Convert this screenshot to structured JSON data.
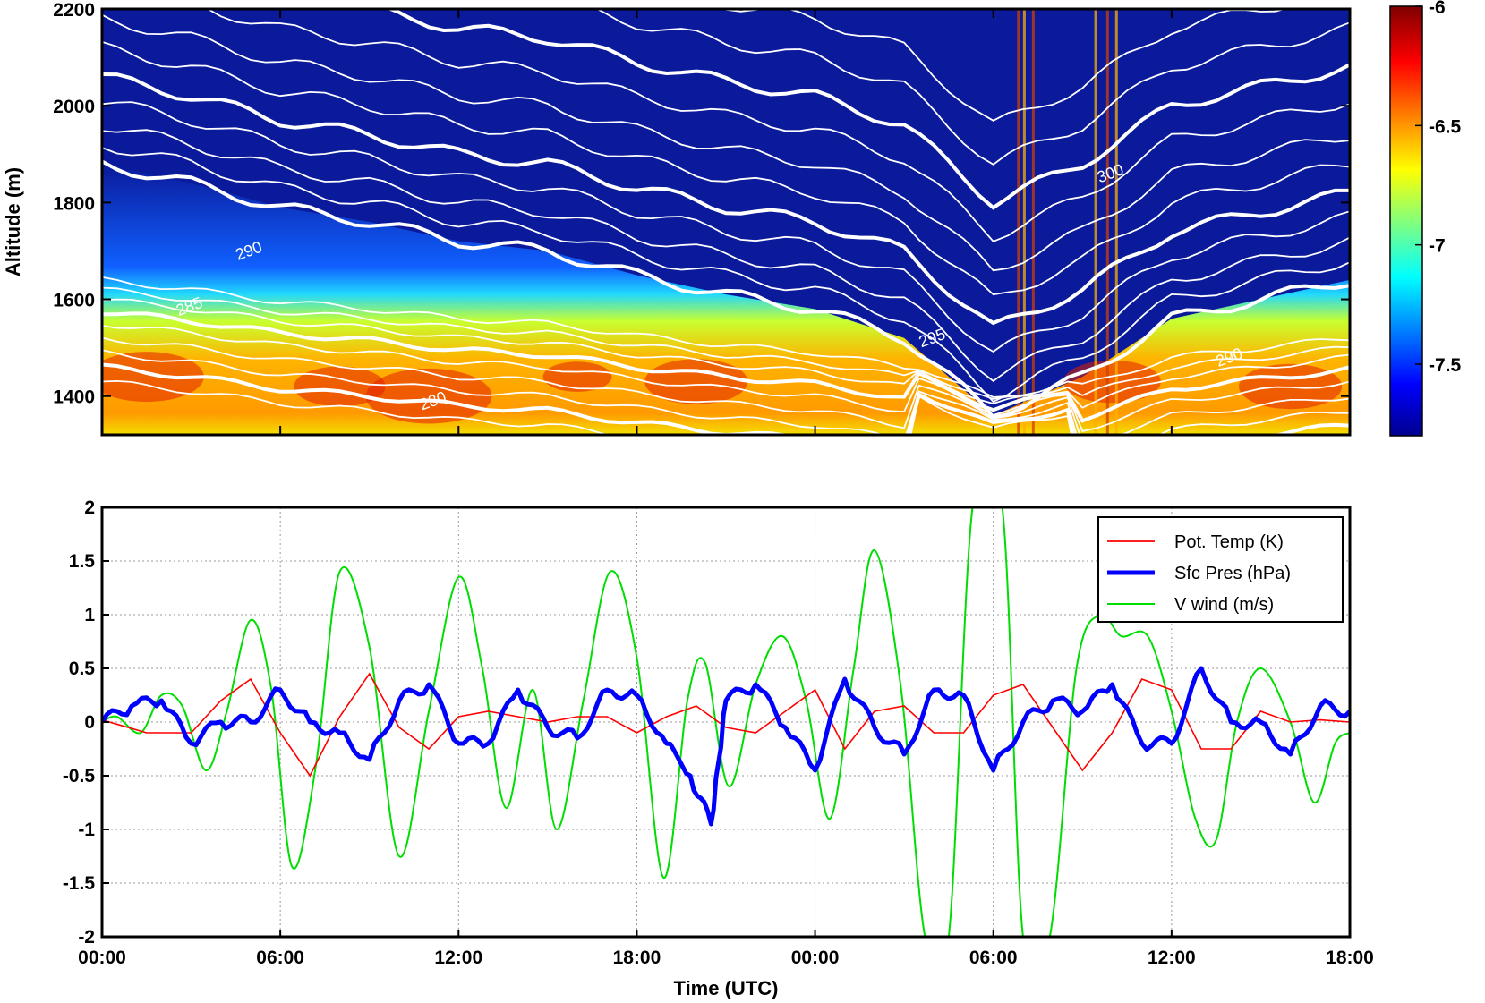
{
  "chart_data": [
    {
      "type": "heatmap",
      "ylabel": "Altitude (m)",
      "xlim_hours": [
        0,
        42
      ],
      "ylim": [
        1320,
        2200
      ],
      "yticks": [
        "1400",
        "1600",
        "1800",
        "2000",
        "2200"
      ],
      "ytick_values": [
        1400,
        1600,
        1800,
        2000,
        2200
      ],
      "colorbar": {
        "range": [
          -7.8,
          -6.0
        ],
        "ticks": [
          "-6",
          "-6.5",
          "-7",
          "-7.5"
        ],
        "tick_values": [
          -6.0,
          -6.5,
          -7.0,
          -7.5
        ],
        "colormap": "jet"
      },
      "contour_labels": [
        "300",
        "290",
        "285",
        "280",
        "295",
        "290"
      ],
      "boundary_layer_top_m": [
        [
          0,
          1880
        ],
        [
          3,
          1840
        ],
        [
          6,
          1790
        ],
        [
          9,
          1760
        ],
        [
          12,
          1720
        ],
        [
          15,
          1700
        ],
        [
          18,
          1650
        ],
        [
          21,
          1610
        ],
        [
          24,
          1580
        ],
        [
          27,
          1520
        ],
        [
          30,
          1360
        ],
        [
          33,
          1440
        ],
        [
          36,
          1560
        ],
        [
          39,
          1600
        ],
        [
          42,
          1640
        ]
      ]
    },
    {
      "type": "line",
      "xlabel": "Time (UTC)",
      "x_ticks": [
        "00:00",
        "06:00",
        "12:00",
        "18:00",
        "00:00",
        "06:00",
        "12:00",
        "18:00"
      ],
      "x_tick_hours": [
        0,
        6,
        12,
        18,
        24,
        30,
        36,
        42
      ],
      "ylim": [
        -2,
        2
      ],
      "yticks": [
        "2",
        "1.5",
        "1",
        "0.5",
        "0",
        "-0.5",
        "-1",
        "-1.5",
        "-2"
      ],
      "ytick_values": [
        2,
        1.5,
        1,
        0.5,
        0,
        -0.5,
        -1,
        -1.5,
        -2
      ],
      "grid": true,
      "legend_position": "top-right",
      "colors": {
        "pot_temp": "#ff0000",
        "sfc_pres": "#0000ff",
        "v_wind": "#00dd00"
      },
      "series": [
        {
          "name": "Pot. Temp (K)",
          "x": [
            0,
            1.5,
            3,
            4,
            5,
            6,
            7,
            8,
            9,
            10,
            11,
            12,
            13,
            14,
            15,
            16,
            17,
            18,
            19,
            20,
            21,
            22,
            23,
            24,
            25,
            26,
            27,
            28,
            29,
            30,
            31,
            32,
            33,
            34,
            35,
            36,
            37,
            38,
            39,
            40,
            41,
            42
          ],
          "values": [
            0.02,
            -0.1,
            -0.1,
            0.2,
            0.4,
            -0.1,
            -0.5,
            0.05,
            0.45,
            -0.05,
            -0.25,
            0.05,
            0.1,
            0.05,
            0.0,
            0.05,
            0.05,
            -0.1,
            0.05,
            0.15,
            -0.05,
            -0.1,
            0.1,
            0.3,
            -0.25,
            0.1,
            0.15,
            -0.1,
            -0.1,
            0.25,
            0.35,
            -0.05,
            -0.45,
            -0.1,
            0.4,
            0.3,
            -0.25,
            -0.25,
            0.1,
            0.0,
            0.02,
            0.0
          ]
        },
        {
          "name": "Sfc Pres (hPa)",
          "x": [
            0,
            1,
            2,
            3,
            4,
            5,
            6,
            7,
            8,
            9,
            10,
            11,
            12,
            13,
            14,
            15,
            16,
            17,
            18,
            19,
            19.8,
            20.5,
            21,
            22,
            23,
            24,
            25,
            26,
            27,
            28,
            29,
            30,
            31,
            32,
            33,
            34,
            35,
            36,
            37,
            38,
            39,
            40,
            41,
            42
          ],
          "values": [
            0.0,
            0.15,
            0.2,
            -0.2,
            0.0,
            0.0,
            0.3,
            0.0,
            -0.1,
            -0.35,
            0.2,
            0.35,
            -0.2,
            -0.2,
            0.3,
            -0.05,
            -0.15,
            0.3,
            0.25,
            -0.2,
            -0.5,
            -0.95,
            0.2,
            0.35,
            -0.05,
            -0.45,
            0.4,
            -0.05,
            -0.3,
            0.3,
            0.25,
            -0.45,
            0.0,
            0.2,
            0.1,
            0.35,
            -0.2,
            -0.2,
            0.5,
            0.0,
            0.0,
            -0.3,
            0.15,
            0.1
          ]
        },
        {
          "name": "V wind (m/s)",
          "x": [
            0,
            0.5,
            1.3,
            2.0,
            2.7,
            3.5,
            4.2,
            5.0,
            5.7,
            6.4,
            7.2,
            8.0,
            9.0,
            10.0,
            11.0,
            12.0,
            12.8,
            13.6,
            14.5,
            15.3,
            16.2,
            17.1,
            18.0,
            18.9,
            19.7,
            20.3,
            21.1,
            22.0,
            22.9,
            23.7,
            24.5,
            25.3,
            26.0,
            26.9,
            27.7,
            28.5,
            29.3,
            30.3,
            31.0,
            31.9,
            32.8,
            33.6,
            34.3,
            35.2,
            36.0,
            36.8,
            37.5,
            38.2,
            39.0,
            40.0,
            40.8,
            41.5,
            42.0
          ],
          "values": [
            0.0,
            0.05,
            -0.1,
            0.25,
            0.15,
            -0.45,
            0.1,
            0.95,
            0.3,
            -1.35,
            -0.4,
            1.4,
            0.7,
            -1.25,
            0.1,
            1.35,
            0.5,
            -0.8,
            0.3,
            -1.0,
            0.2,
            1.4,
            0.6,
            -1.45,
            0.2,
            0.55,
            -0.6,
            0.35,
            0.8,
            0.2,
            -0.9,
            0.5,
            1.6,
            0.3,
            -2.0,
            -2.0,
            2.0,
            2.0,
            -2.0,
            -2.0,
            0.5,
            1.0,
            0.8,
            0.8,
            0.1,
            -0.9,
            -1.1,
            0.0,
            0.5,
            0.0,
            -0.75,
            -0.2,
            -0.1
          ]
        }
      ]
    }
  ]
}
